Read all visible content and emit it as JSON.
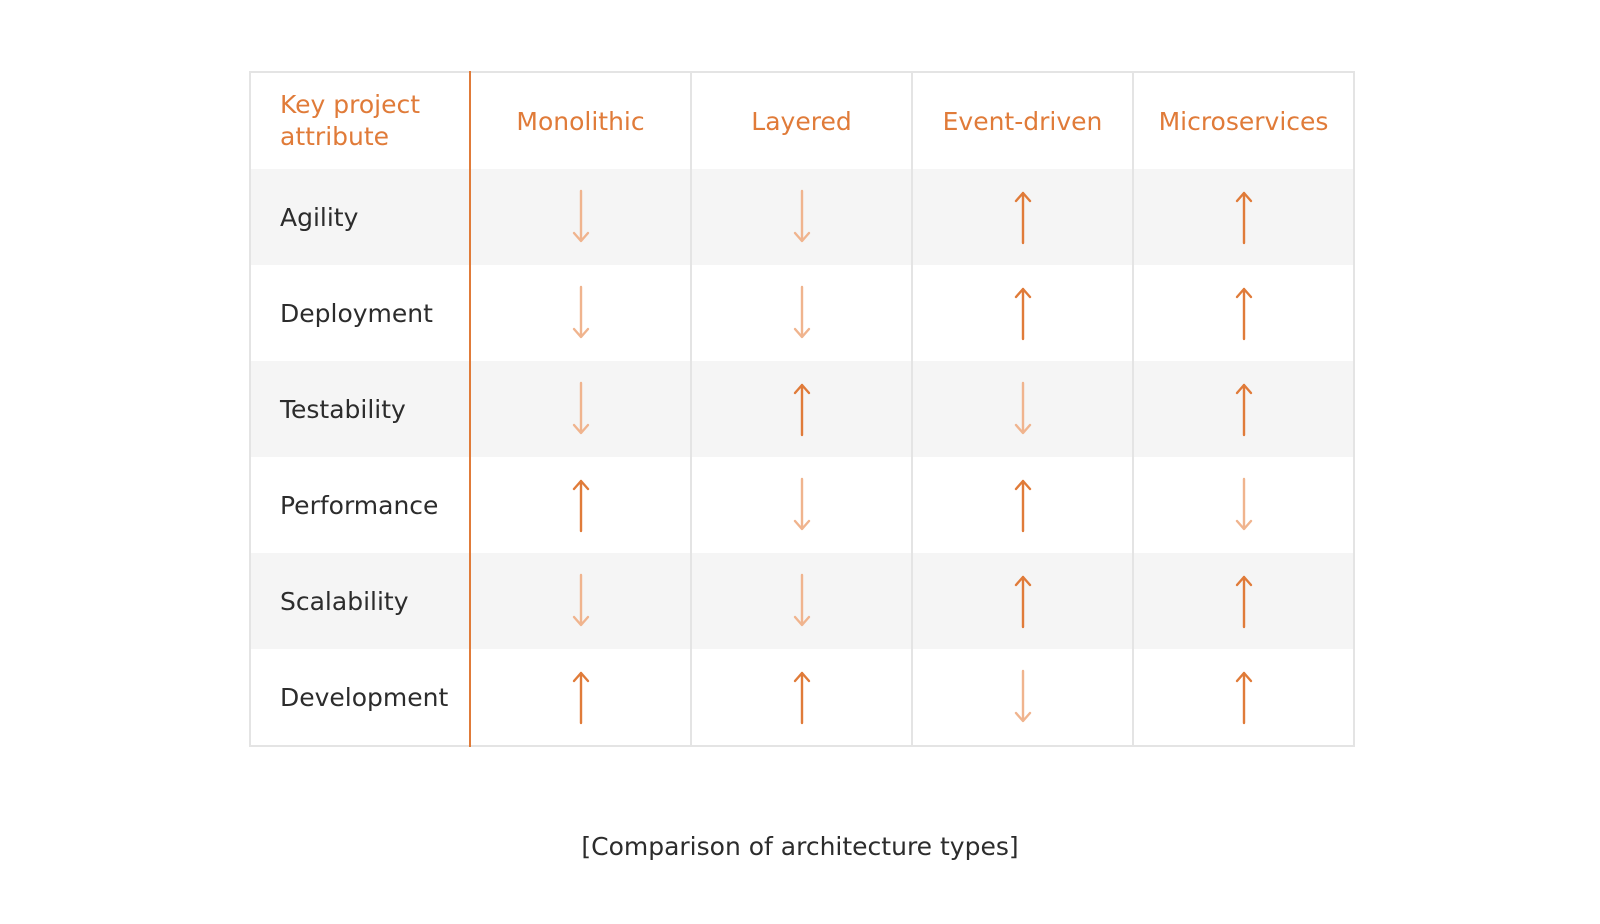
{
  "table": {
    "header": [
      "Key project attribute",
      "Monolithic",
      "Layered",
      "Event-driven",
      "Microservices"
    ],
    "rows": [
      "Agility",
      "Deployment",
      "Testability",
      "Performance",
      "Scalability",
      "Development"
    ]
  },
  "caption": "[Comparison of architecture types]"
}
